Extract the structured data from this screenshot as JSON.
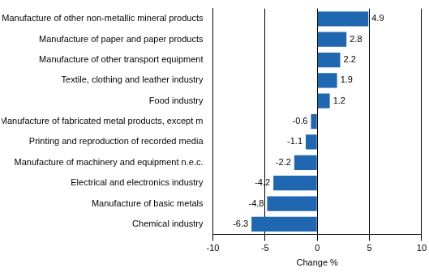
{
  "chart_data": {
    "type": "bar",
    "orientation": "horizontal",
    "categories": [
      "Manufacture of other non-metallic mineral products",
      "Manufacture of paper and paper products",
      "Manufacture of other transport equipment",
      "Textile, clothing and leather industry",
      "Food industry",
      "Manufacture of fabricated metal products, except m",
      "Printing and reproduction of recorded media",
      "Manufacture of machinery and equipment n.e.c.",
      "Electrical and electronics industry",
      "Manufacture of basic metals",
      "Chemical industry"
    ],
    "values": [
      4.9,
      2.8,
      2.2,
      1.9,
      1.2,
      -0.6,
      -1.1,
      -2.2,
      -4.2,
      -4.8,
      -6.3
    ],
    "color": "#1f67b1",
    "x_label": "Change %",
    "xlim": [
      -10,
      10
    ],
    "xticks": [
      -10,
      -5,
      0,
      5,
      10
    ],
    "grid": true,
    "data_labels": true
  }
}
